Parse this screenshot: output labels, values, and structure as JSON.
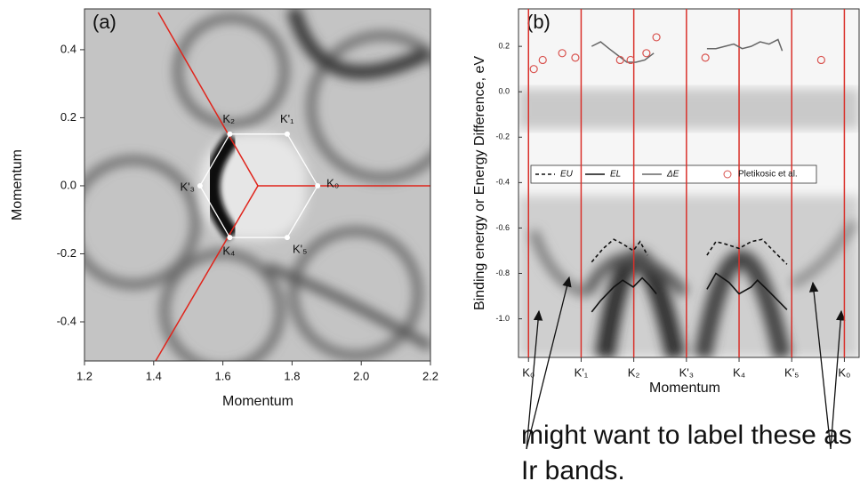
{
  "chart_data": [
    {
      "type": "scatter",
      "title": "(a)",
      "xlabel": "Momentum",
      "ylabel": "Momentum",
      "xlim": [
        1.2,
        2.2
      ],
      "ylim": [
        -0.515,
        0.52
      ],
      "xticks": [
        1.2,
        1.4,
        1.6,
        1.8,
        {
          "value": 2,
          "label": "2.0"
        },
        2.2
      ],
      "yticks": [
        -0.4,
        -0.2,
        {
          "value": 0,
          "label": "0.0"
        },
        0.2,
        0.4
      ],
      "x": [
        1.62,
        1.786,
        1.874,
        1.786,
        1.62,
        1.534
      ],
      "values": [
        0.152,
        0.152,
        0,
        -0.152,
        -0.152,
        0
      ],
      "point_labels": [
        "K₂",
        "K'₁",
        "K₀",
        "K'₅",
        "K₄",
        "K'₃"
      ],
      "color": "#ffffff"
    },
    {
      "type": "line",
      "title": "(b)",
      "xlabel": "Momentum",
      "ylabel": "Binding energy or Energy Difference, eV",
      "xlim": [
        -0.19,
        6.28
      ],
      "ylim": [
        -1.17,
        0.365
      ],
      "xticks": [
        {
          "value": 0,
          "label": "K₀"
        },
        {
          "value": 1,
          "label": "K'₁"
        },
        {
          "value": 2,
          "label": "K₂"
        },
        {
          "value": 3,
          "label": "K'₃"
        },
        {
          "value": 4,
          "label": "K₄"
        },
        {
          "value": 5,
          "label": "K'₅"
        },
        {
          "value": 6,
          "label": "K₀"
        }
      ],
      "yticks": [
        0.2,
        {
          "value": 0,
          "label": "0.0"
        },
        -0.2,
        -0.4,
        -0.6,
        -0.8,
        {
          "value": -1,
          "label": "-1.0"
        }
      ],
      "grid": true,
      "grid_color": "#d9302a",
      "series": [
        {
          "name": "EU",
          "color": "#111111",
          "style": "dashed",
          "x": [
            1.2,
            1.42,
            1.62,
            1.79,
            1.99,
            2.12,
            2.26,
            null,
            3.39,
            3.56,
            3.73,
            4.0,
            4.23,
            4.44,
            4.65,
            4.91
          ],
          "values": [
            -0.75,
            -0.69,
            -0.65,
            -0.67,
            -0.7,
            -0.66,
            -0.72,
            null,
            -0.72,
            -0.66,
            -0.67,
            -0.69,
            -0.66,
            -0.65,
            -0.7,
            -0.76
          ]
        },
        {
          "name": "EL",
          "color": "#111111",
          "style": "solid",
          "x": [
            1.2,
            1.37,
            1.62,
            1.79,
            1.99,
            2.16,
            2.29,
            2.43,
            null,
            3.39,
            3.56,
            3.81,
            4.0,
            4.23,
            4.35,
            4.57,
            4.91
          ],
          "values": [
            -0.97,
            -0.92,
            -0.86,
            -0.83,
            -0.86,
            -0.82,
            -0.85,
            -0.89,
            null,
            -0.87,
            -0.8,
            -0.84,
            -0.89,
            -0.86,
            -0.83,
            -0.88,
            -0.96
          ]
        },
        {
          "name": "ΔE",
          "color": "#666666",
          "style": "solid",
          "x": [
            1.2,
            1.37,
            1.53,
            1.7,
            1.87,
            2.04,
            2.21,
            2.38,
            null,
            3.39,
            3.56,
            3.73,
            3.9,
            4.06,
            4.23,
            4.4,
            4.57,
            4.74,
            4.82
          ],
          "values": [
            0.2,
            0.22,
            0.19,
            0.16,
            0.13,
            0.13,
            0.14,
            0.17,
            null,
            0.19,
            0.19,
            0.2,
            0.21,
            0.19,
            0.2,
            0.22,
            0.21,
            0.23,
            0.18
          ]
        },
        {
          "name": "Pletikosic et al.",
          "color": "#d9534f",
          "style": "open-circle",
          "x": [
            0.1,
            0.27,
            0.64,
            0.89,
            1.74,
            1.94,
            2.24,
            2.43,
            3.36,
            5.56
          ],
          "values": [
            0.1,
            0.14,
            0.17,
            0.15,
            0.14,
            0.14,
            0.17,
            0.24,
            0.15,
            0.14
          ]
        }
      ],
      "annotation": "might want to label these as Ir bands."
    }
  ]
}
